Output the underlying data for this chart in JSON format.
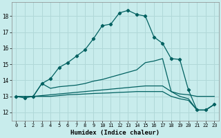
{
  "xlabel": "Humidex (Indice chaleur)",
  "xlim": [
    -0.5,
    23.5
  ],
  "ylim": [
    11.5,
    18.85
  ],
  "yticks": [
    12,
    13,
    14,
    15,
    16,
    17,
    18
  ],
  "xticks": [
    0,
    1,
    2,
    3,
    4,
    5,
    6,
    7,
    8,
    9,
    10,
    11,
    12,
    13,
    14,
    15,
    16,
    17,
    18,
    19,
    20,
    21,
    22,
    23
  ],
  "bg_color": "#c8ecec",
  "line_color": "#006060",
  "grid_color": "#b0d8d8",
  "series": {
    "line1_marked": {
      "x": [
        0,
        1,
        2,
        3,
        4,
        5,
        6,
        7,
        8,
        9,
        10,
        11,
        12,
        13,
        14,
        15,
        16,
        17,
        18,
        19,
        20,
        21,
        22,
        23
      ],
      "y": [
        13.0,
        12.9,
        13.0,
        13.8,
        14.1,
        14.8,
        15.1,
        15.5,
        15.9,
        16.6,
        17.4,
        17.5,
        18.2,
        18.35,
        18.1,
        18.0,
        16.7,
        16.3,
        15.35,
        15.3,
        13.4,
        12.15,
        12.15,
        12.5
      ]
    },
    "line2_upper": {
      "x": [
        0,
        2,
        3,
        4,
        5,
        6,
        7,
        8,
        9,
        10,
        11,
        12,
        13,
        14,
        15,
        16,
        17,
        18,
        19,
        20,
        21,
        22,
        23
      ],
      "y": [
        13.0,
        13.0,
        13.8,
        13.5,
        13.6,
        13.65,
        13.7,
        13.8,
        13.95,
        14.05,
        14.2,
        14.35,
        14.5,
        14.65,
        15.1,
        15.2,
        15.35,
        13.3,
        13.15,
        13.1,
        13.0,
        13.0,
        13.0
      ]
    },
    "line3_mid": {
      "x": [
        0,
        2,
        3,
        4,
        5,
        6,
        7,
        8,
        9,
        10,
        11,
        12,
        13,
        14,
        15,
        16,
        17,
        18,
        19,
        20,
        21,
        22,
        23
      ],
      "y": [
        13.0,
        13.0,
        13.05,
        13.1,
        13.15,
        13.2,
        13.25,
        13.3,
        13.35,
        13.4,
        13.45,
        13.5,
        13.55,
        13.6,
        13.65,
        13.65,
        13.65,
        13.3,
        13.0,
        12.85,
        12.15,
        12.15,
        12.5
      ]
    },
    "line4_low": {
      "x": [
        0,
        2,
        3,
        4,
        5,
        6,
        7,
        8,
        9,
        10,
        11,
        12,
        13,
        14,
        15,
        16,
        17,
        18,
        19,
        20,
        21,
        22,
        23
      ],
      "y": [
        13.0,
        13.0,
        13.0,
        13.0,
        13.05,
        13.1,
        13.12,
        13.15,
        13.18,
        13.2,
        13.22,
        13.25,
        13.27,
        13.3,
        13.3,
        13.3,
        13.3,
        13.0,
        12.85,
        12.75,
        12.15,
        12.15,
        12.5
      ]
    }
  }
}
